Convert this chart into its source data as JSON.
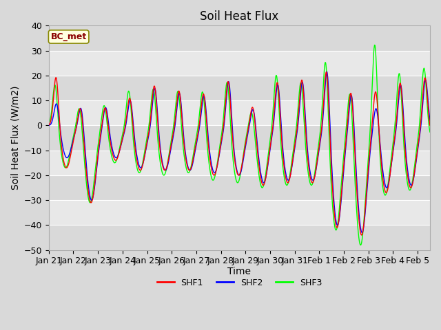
{
  "title": "Soil Heat Flux",
  "xlabel": "Time",
  "ylabel": "Soil Heat Flux (W/m2)",
  "ylim": [
    -50,
    40
  ],
  "yticks": [
    -50,
    -40,
    -30,
    -20,
    -10,
    0,
    10,
    20,
    30,
    40
  ],
  "annotation": "BC_met",
  "legend": [
    "SHF1",
    "SHF2",
    "SHF3"
  ],
  "colors": [
    "red",
    "blue",
    "lime"
  ],
  "xtick_labels": [
    "Jan 21",
    "Jan 22",
    "Jan 23",
    "Jan 24",
    "Jan 25",
    "Jan 26",
    "Jan 27",
    "Jan 28",
    "Jan 29",
    "Jan 30",
    "Jan 31",
    "Feb 1",
    "Feb 2",
    "Feb 3",
    "Feb 4",
    "Feb 5"
  ],
  "title_fontsize": 12,
  "label_fontsize": 10,
  "tick_fontsize": 9,
  "n_days": 15.5,
  "bg_color": "#d9d9d9",
  "ax_bg_color": "#e8e8e8",
  "band_colors": [
    "#d9d9d9",
    "#e8e8e8"
  ]
}
